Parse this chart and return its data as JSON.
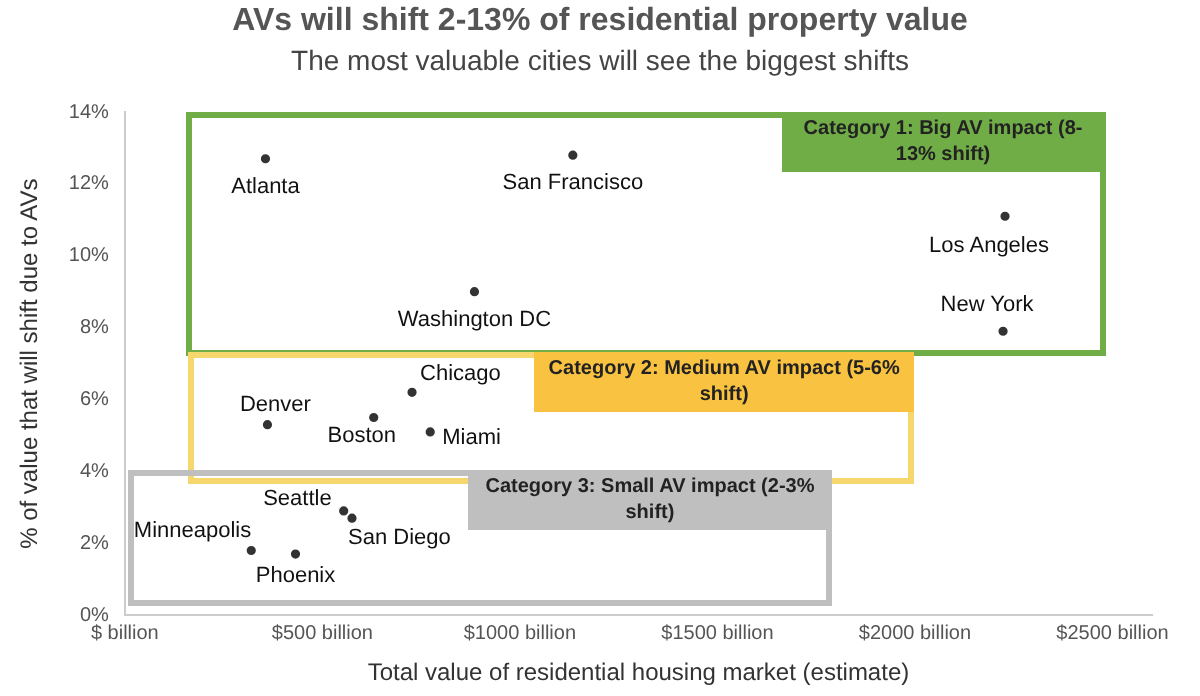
{
  "chart_data": {
    "type": "scatter",
    "title": "AVs will shift 2-13% of residential property value",
    "subtitle": "The most valuable cities will see the biggest shifts",
    "xlabel": "Total value of residential housing market (estimate)",
    "ylabel": "% of value that will shift due to AVs",
    "xlim": [
      0,
      2600
    ],
    "xticks": [
      {
        "value": 0,
        "label": "$ billion"
      },
      {
        "value": 500,
        "label": "$500 billion"
      },
      {
        "value": 1000,
        "label": "$1000 billion"
      },
      {
        "value": 1500,
        "label": "$1500 billion"
      },
      {
        "value": 2000,
        "label": "$2000 billion"
      },
      {
        "value": 2500,
        "label": "$2500 billion"
      }
    ],
    "ylim": [
      0,
      14
    ],
    "yticks": [
      {
        "value": 0,
        "label": "0%"
      },
      {
        "value": 2,
        "label": "2%"
      },
      {
        "value": 4,
        "label": "4%"
      },
      {
        "value": 6,
        "label": "6%"
      },
      {
        "value": 8,
        "label": "8%"
      },
      {
        "value": 10,
        "label": "10%"
      },
      {
        "value": 12,
        "label": "12%"
      },
      {
        "value": 14,
        "label": "14%"
      }
    ],
    "grid": false,
    "legend": false,
    "marker": "circle",
    "series": [
      {
        "color": "#333333",
        "x": [
          356,
          1134,
          885,
          2228,
          2223
        ],
        "values": [
          12.7,
          12.8,
          9.0,
          11.1,
          7.9
        ]
      },
      {
        "color": "#333333",
        "x": [
          361,
          727,
          630,
          773
        ],
        "values": [
          5.3,
          6.2,
          5.5,
          5.1
        ]
      },
      {
        "color": "#333333",
        "x": [
          554,
          575,
          320,
          432
        ],
        "values": [
          2.9,
          2.7,
          1.8,
          1.7
        ]
      }
    ],
    "annotations": [
      "Category 1: Big AV impact (8-13% shift)",
      "Category 2: Medium AV impact (5-6% shift)",
      "Category 3: Small  AV impact (2-3% shift)",
      {
        "text": "Atlanta",
        "x": 356,
        "y": 12.7
      },
      {
        "text": "San Francisco",
        "x": 1134,
        "y": 12.8
      },
      {
        "text": "Washington DC",
        "x": 885,
        "y": 9.0
      },
      {
        "text": "Los Angeles",
        "x": 2228,
        "y": 11.1
      },
      {
        "text": "New York",
        "x": 2223,
        "y": 7.9
      },
      {
        "text": "Denver",
        "x": 361,
        "y": 5.3
      },
      {
        "text": "Chicago",
        "x": 727,
        "y": 6.2
      },
      {
        "text": "Boston",
        "x": 630,
        "y": 5.5
      },
      {
        "text": "Miami",
        "x": 773,
        "y": 5.1
      },
      {
        "text": "Seattle",
        "x": 554,
        "y": 2.9
      },
      {
        "text": "San Diego",
        "x": 575,
        "y": 2.7
      },
      {
        "text": "Minneapolis",
        "x": 320,
        "y": 1.8
      },
      {
        "text": "Phoenix",
        "x": 432,
        "y": 1.7
      }
    ]
  }
}
